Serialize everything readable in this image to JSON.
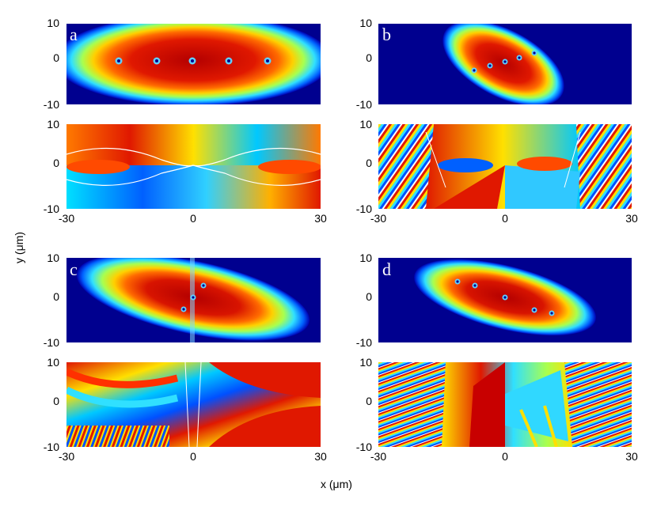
{
  "axes": {
    "xlabel": "x (μm)",
    "ylabel": "y (μm)"
  },
  "ticks": {
    "y_top": "10",
    "y_mid": "0",
    "y_bot": "-10",
    "x_left": "-30",
    "x_mid": "0",
    "x_right": "30"
  },
  "panels": [
    {
      "label": "a",
      "id": "a"
    },
    {
      "label": "b",
      "id": "b"
    },
    {
      "label": "c",
      "id": "c"
    },
    {
      "label": "d",
      "id": "d"
    }
  ],
  "colors": {
    "density_low": "#00008f",
    "density_high": "#8b0000",
    "colormap": "jet"
  }
}
